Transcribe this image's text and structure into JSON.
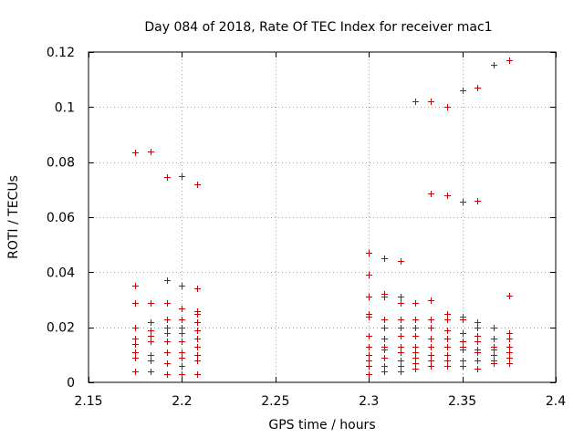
{
  "chart_data": {
    "type": "scatter",
    "title": "Day 084 of 2018, Rate Of TEC Index for receiver mac1",
    "xlabel": "GPS time / hours",
    "ylabel": "ROTI / TECUs",
    "xlim": [
      2.15,
      2.4
    ],
    "ylim": [
      0,
      0.12
    ],
    "grid": true,
    "marker": "+",
    "color": "#d00000",
    "x_ticks": [
      2.15,
      2.2,
      2.25,
      2.3,
      2.35,
      2.4
    ],
    "x_tick_labels": [
      "2.15",
      "2.2",
      "2.25",
      "2.3",
      "2.35",
      "2.4"
    ],
    "y_ticks": [
      0,
      0.02,
      0.04,
      0.06,
      0.08,
      0.1,
      0.12
    ],
    "y_tick_labels": [
      "0",
      "0.02",
      "0.04",
      "0.06",
      "0.08",
      "0.1",
      "0.12"
    ],
    "series": [
      {
        "name": "ROTI",
        "points": [
          [
            2.175,
            0.0835
          ],
          [
            2.175,
            0.035
          ],
          [
            2.175,
            0.029
          ],
          [
            2.175,
            0.02
          ],
          [
            2.175,
            0.016
          ],
          [
            2.175,
            0.014
          ],
          [
            2.175,
            0.011
          ],
          [
            2.175,
            0.009
          ],
          [
            2.175,
            0.004
          ],
          [
            2.183,
            0.0838
          ],
          [
            2.183,
            0.029
          ],
          [
            2.183,
            0.022
          ],
          [
            2.183,
            0.019
          ],
          [
            2.183,
            0.017
          ],
          [
            2.183,
            0.015
          ],
          [
            2.183,
            0.01
          ],
          [
            2.183,
            0.008
          ],
          [
            2.183,
            0.004
          ],
          [
            2.192,
            0.0745
          ],
          [
            2.192,
            0.037
          ],
          [
            2.192,
            0.029
          ],
          [
            2.192,
            0.023
          ],
          [
            2.192,
            0.02
          ],
          [
            2.192,
            0.018
          ],
          [
            2.192,
            0.015
          ],
          [
            2.192,
            0.011
          ],
          [
            2.192,
            0.007
          ],
          [
            2.192,
            0.003
          ],
          [
            2.2,
            0.075
          ],
          [
            2.2,
            0.035
          ],
          [
            2.2,
            0.027
          ],
          [
            2.2,
            0.023
          ],
          [
            2.2,
            0.02
          ],
          [
            2.2,
            0.018
          ],
          [
            2.2,
            0.015
          ],
          [
            2.2,
            0.011
          ],
          [
            2.2,
            0.009
          ],
          [
            2.2,
            0.006
          ],
          [
            2.2,
            0.003
          ],
          [
            2.208,
            0.072
          ],
          [
            2.208,
            0.034
          ],
          [
            2.208,
            0.026
          ],
          [
            2.208,
            0.025
          ],
          [
            2.208,
            0.022
          ],
          [
            2.208,
            0.019
          ],
          [
            2.208,
            0.016
          ],
          [
            2.208,
            0.013
          ],
          [
            2.208,
            0.01
          ],
          [
            2.208,
            0.008
          ],
          [
            2.208,
            0.003
          ],
          [
            2.3,
            0.047
          ],
          [
            2.3,
            0.039
          ],
          [
            2.3,
            0.031
          ],
          [
            2.3,
            0.025
          ],
          [
            2.3,
            0.024
          ],
          [
            2.3,
            0.017
          ],
          [
            2.3,
            0.013
          ],
          [
            2.3,
            0.01
          ],
          [
            2.3,
            0.008
          ],
          [
            2.3,
            0.006
          ],
          [
            2.3,
            0.003
          ],
          [
            2.308,
            0.045
          ],
          [
            2.308,
            0.032
          ],
          [
            2.308,
            0.031
          ],
          [
            2.308,
            0.023
          ],
          [
            2.308,
            0.02
          ],
          [
            2.308,
            0.016
          ],
          [
            2.308,
            0.013
          ],
          [
            2.308,
            0.012
          ],
          [
            2.308,
            0.009
          ],
          [
            2.308,
            0.006
          ],
          [
            2.308,
            0.004
          ],
          [
            2.317,
            0.044
          ],
          [
            2.317,
            0.031
          ],
          [
            2.317,
            0.029
          ],
          [
            2.317,
            0.023
          ],
          [
            2.317,
            0.02
          ],
          [
            2.317,
            0.017
          ],
          [
            2.317,
            0.013
          ],
          [
            2.317,
            0.011
          ],
          [
            2.317,
            0.008
          ],
          [
            2.317,
            0.006
          ],
          [
            2.317,
            0.004
          ],
          [
            2.325,
            0.102
          ],
          [
            2.325,
            0.029
          ],
          [
            2.325,
            0.023
          ],
          [
            2.325,
            0.02
          ],
          [
            2.325,
            0.017
          ],
          [
            2.325,
            0.013
          ],
          [
            2.325,
            0.011
          ],
          [
            2.325,
            0.009
          ],
          [
            2.325,
            0.007
          ],
          [
            2.325,
            0.005
          ],
          [
            2.333,
            0.102
          ],
          [
            2.333,
            0.0685
          ],
          [
            2.333,
            0.03
          ],
          [
            2.333,
            0.023
          ],
          [
            2.333,
            0.02
          ],
          [
            2.333,
            0.016
          ],
          [
            2.333,
            0.013
          ],
          [
            2.333,
            0.01
          ],
          [
            2.333,
            0.008
          ],
          [
            2.333,
            0.006
          ],
          [
            2.342,
            0.1
          ],
          [
            2.342,
            0.068
          ],
          [
            2.342,
            0.025
          ],
          [
            2.342,
            0.023
          ],
          [
            2.342,
            0.019
          ],
          [
            2.342,
            0.016
          ],
          [
            2.342,
            0.013
          ],
          [
            2.342,
            0.01
          ],
          [
            2.342,
            0.008
          ],
          [
            2.342,
            0.006
          ],
          [
            2.35,
            0.106
          ],
          [
            2.35,
            0.0655
          ],
          [
            2.35,
            0.024
          ],
          [
            2.35,
            0.023
          ],
          [
            2.35,
            0.018
          ],
          [
            2.35,
            0.015
          ],
          [
            2.35,
            0.013
          ],
          [
            2.35,
            0.012
          ],
          [
            2.35,
            0.008
          ],
          [
            2.35,
            0.006
          ],
          [
            2.358,
            0.107
          ],
          [
            2.358,
            0.066
          ],
          [
            2.358,
            0.022
          ],
          [
            2.358,
            0.02
          ],
          [
            2.358,
            0.017
          ],
          [
            2.358,
            0.015
          ],
          [
            2.358,
            0.012
          ],
          [
            2.358,
            0.011
          ],
          [
            2.358,
            0.008
          ],
          [
            2.358,
            0.005
          ],
          [
            2.367,
            0.1155
          ],
          [
            2.367,
            0.02
          ],
          [
            2.367,
            0.016
          ],
          [
            2.367,
            0.013
          ],
          [
            2.367,
            0.012
          ],
          [
            2.367,
            0.01
          ],
          [
            2.367,
            0.008
          ],
          [
            2.367,
            0.007
          ],
          [
            2.375,
            0.117
          ],
          [
            2.375,
            0.0315
          ],
          [
            2.375,
            0.018
          ],
          [
            2.375,
            0.016
          ],
          [
            2.375,
            0.013
          ],
          [
            2.375,
            0.011
          ],
          [
            2.375,
            0.009
          ],
          [
            2.375,
            0.007
          ]
        ]
      }
    ]
  }
}
